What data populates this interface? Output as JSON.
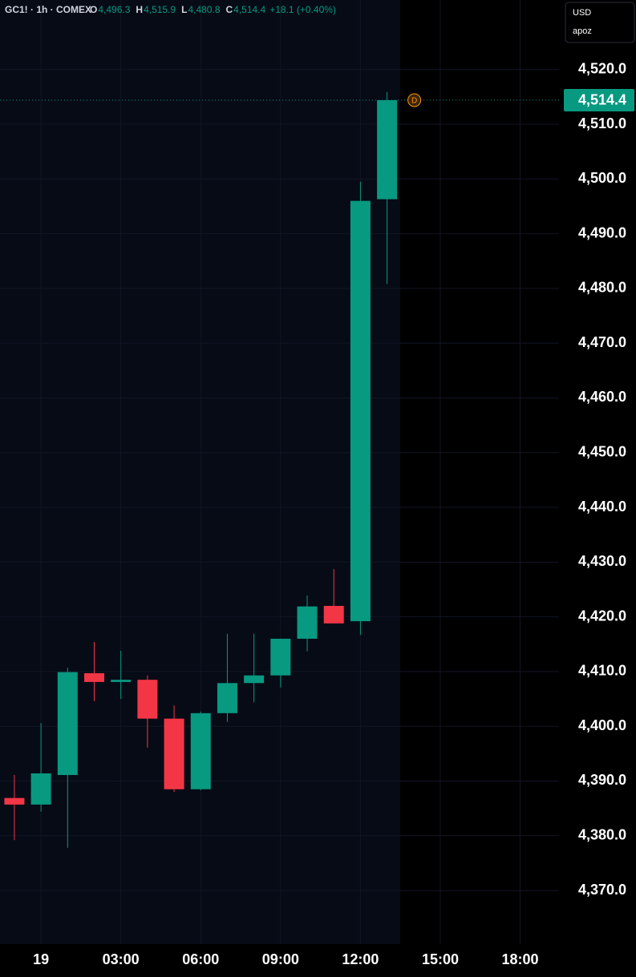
{
  "chart_data": {
    "type": "candlestick",
    "header": {
      "symbol": "GC1! · 1h · COMEX",
      "fields": [
        {
          "key": "O",
          "value": "4,496.3"
        },
        {
          "key": "H",
          "value": "4,515.9"
        },
        {
          "key": "L",
          "value": "4,480.8"
        },
        {
          "key": "C",
          "value": "4,514.4"
        }
      ],
      "change": "+18.1 (+0.40%)"
    },
    "currency": "USD",
    "unit_label": "apoz",
    "event_marker": "D",
    "x": [
      -1,
      0,
      1,
      2,
      3,
      4,
      5,
      6,
      7,
      8,
      9,
      10,
      11,
      12,
      13
    ],
    "open": [
      4386.9,
      4385.7,
      4391.1,
      4409.7,
      4408.1,
      4408.5,
      4401.4,
      4388.5,
      4402.4,
      4407.9,
      4409.3,
      4416.0,
      4422.0,
      4419.2,
      4496.3
    ],
    "high": [
      4391.1,
      4400.6,
      4410.7,
      4415.4,
      4413.8,
      4409.3,
      4403.8,
      4402.7,
      4416.9,
      4416.9,
      4416.0,
      4423.9,
      4428.7,
      4499.5,
      4515.9
    ],
    "low": [
      4379.2,
      4384.4,
      4377.8,
      4404.6,
      4405.0,
      4396.1,
      4388.0,
      4388.3,
      4400.8,
      4404.4,
      4407.1,
      4413.7,
      4418.8,
      4416.7,
      4480.8
    ],
    "close": [
      4385.7,
      4391.4,
      4409.9,
      4408.1,
      4408.5,
      4401.4,
      4388.5,
      4402.4,
      4407.9,
      4409.3,
      4416.0,
      4421.9,
      4418.8,
      4496.0,
      4514.4
    ],
    "up_color": "#089981",
    "down_color": "#f23645",
    "last_price": {
      "value": 4514.4,
      "label": "4,514.4"
    },
    "xlim": [
      -1.54,
      19.46
    ],
    "xticks": [
      {
        "value": 0,
        "label": "19"
      },
      {
        "value": 3,
        "label": "03:00"
      },
      {
        "value": 6,
        "label": "06:00"
      },
      {
        "value": 9,
        "label": "09:00"
      },
      {
        "value": 12,
        "label": "12:00"
      },
      {
        "value": 15,
        "label": "15:00"
      },
      {
        "value": 18,
        "label": "18:00"
      }
    ],
    "ylim": [
      4360.2,
      4532.7
    ],
    "yticks": [
      {
        "value": 4370,
        "label": "4,370.0"
      },
      {
        "value": 4380,
        "label": "4,380.0"
      },
      {
        "value": 4390,
        "label": "4,390.0"
      },
      {
        "value": 4400,
        "label": "4,400.0"
      },
      {
        "value": 4410,
        "label": "4,410.0"
      },
      {
        "value": 4420,
        "label": "4,420.0"
      },
      {
        "value": 4430,
        "label": "4,430.0"
      },
      {
        "value": 4440,
        "label": "4,440.0"
      },
      {
        "value": 4450,
        "label": "4,450.0"
      },
      {
        "value": 4460,
        "label": "4,460.0"
      },
      {
        "value": 4470,
        "label": "4,470.0"
      },
      {
        "value": 4480,
        "label": "4,480.0"
      },
      {
        "value": 4490,
        "label": "4,490.0"
      },
      {
        "value": 4500,
        "label": "4,500.0"
      },
      {
        "value": 4510,
        "label": "4,510.0"
      },
      {
        "value": 4520,
        "label": "4,520.0"
      }
    ],
    "grid": true
  }
}
